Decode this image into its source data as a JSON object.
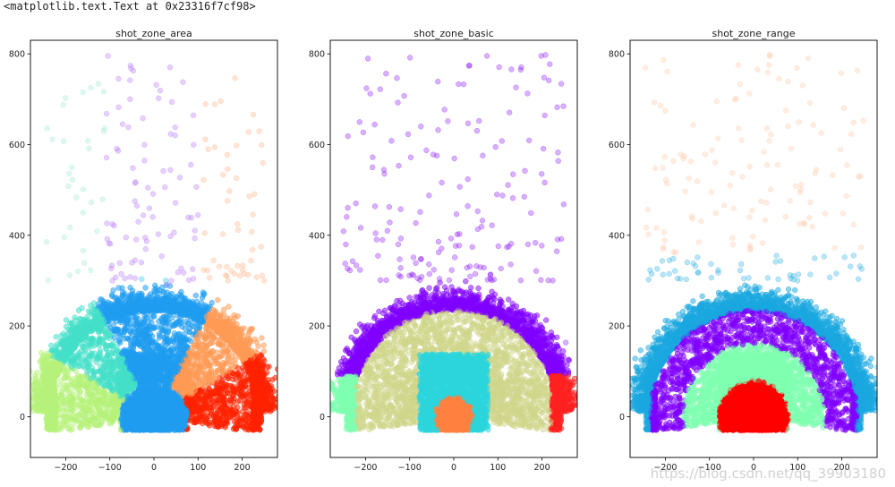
{
  "header": {
    "text": "<matplotlib.text.Text at 0x23316f7cf98>"
  },
  "watermark": {
    "text": "https://blog.csdn.net/qq_39903180"
  },
  "chart_data": [
    {
      "type": "scatter",
      "title": "shot_zone_area",
      "xlabel": "",
      "ylabel": "",
      "xlim": [
        -280,
        280
      ],
      "ylim": [
        -90,
        830
      ],
      "xticks": [
        -200,
        -100,
        0,
        100,
        200
      ],
      "yticks": [
        0,
        200,
        400,
        600,
        800
      ],
      "grid": false,
      "zone_colors": [
        "#b6f27a",
        "#44e0c8",
        "#1f9cf0",
        "#ff9a56",
        "#ff2200",
        "#b87cf9",
        "#27c2e6",
        "#ffb58a",
        "#a4e8d8"
      ]
    },
    {
      "type": "scatter",
      "title": "shot_zone_basic",
      "xlabel": "",
      "ylabel": "",
      "xlim": [
        -280,
        280
      ],
      "ylim": [
        -90,
        830
      ],
      "xticks": [
        -200,
        -100,
        0,
        100,
        200
      ],
      "yticks": [
        0,
        200,
        400,
        600,
        800
      ],
      "grid": false,
      "zone_colors": [
        "#8000ff",
        "#cfd68a",
        "#2bd6dc",
        "#ff8040",
        "#7fffb0",
        "#ff2020"
      ]
    },
    {
      "type": "scatter",
      "title": "shot_zone_range",
      "xlabel": "",
      "ylabel": "",
      "xlim": [
        -280,
        280
      ],
      "ylim": [
        -90,
        830
      ],
      "xticks": [
        -200,
        -100,
        0,
        100,
        200
      ],
      "yticks": [
        0,
        200,
        400,
        600,
        800
      ],
      "grid": false,
      "zone_colors": [
        "#1aa8e0",
        "#8000ff",
        "#7fffb0",
        "#ff0000",
        "#ffc2a0"
      ]
    }
  ]
}
